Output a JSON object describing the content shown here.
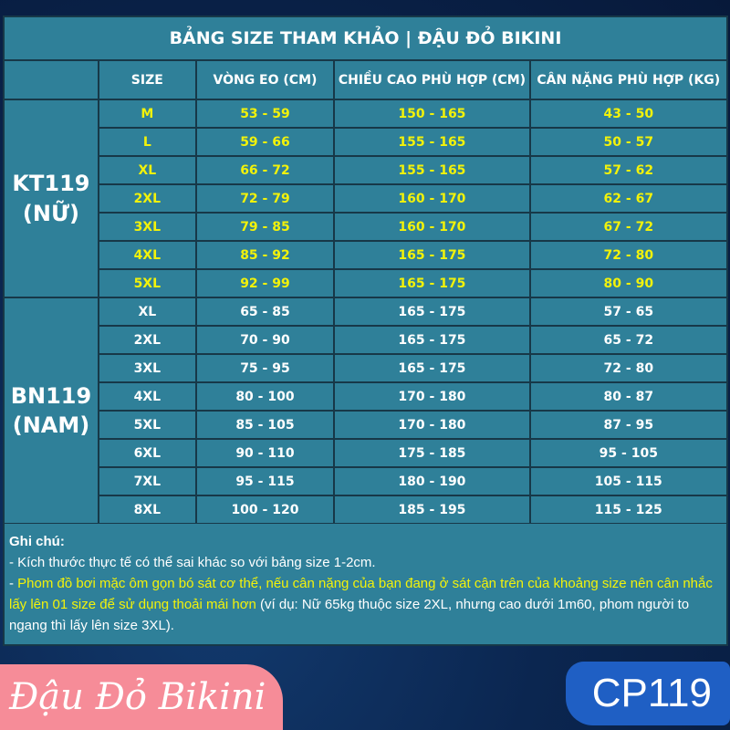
{
  "title": "BẢNG SIZE THAM KHẢO | ĐẬU ĐỎ BIKINI",
  "headers": [
    "SIZE",
    "VÒNG EO (CM)",
    "CHIỀU CAO PHÙ HỢP (CM)",
    "CÂN NẶNG PHÙ HỢP (KG)"
  ],
  "groups": [
    {
      "label": "KT119\n(NỮ)",
      "highlight": true,
      "rows": [
        [
          "M",
          "53 - 59",
          "150 - 165",
          "43 - 50"
        ],
        [
          "L",
          "59 - 66",
          "155 - 165",
          "50 - 57"
        ],
        [
          "XL",
          "66 - 72",
          "155 - 165",
          "57 - 62"
        ],
        [
          "2XL",
          "72 - 79",
          "160 - 170",
          "62 - 67"
        ],
        [
          "3XL",
          "79 - 85",
          "160 - 170",
          "67 - 72"
        ],
        [
          "4XL",
          "85 - 92",
          "165 - 175",
          "72 - 80"
        ],
        [
          "5XL",
          "92 - 99",
          "165 - 175",
          "80 - 90"
        ]
      ]
    },
    {
      "label": "BN119\n(NAM)",
      "highlight": false,
      "rows": [
        [
          "XL",
          "65 - 85",
          "165 - 175",
          "57 - 65"
        ],
        [
          "2XL",
          "70 - 90",
          "165 - 175",
          "65 - 72"
        ],
        [
          "3XL",
          "75 - 95",
          "165 - 175",
          "72 - 80"
        ],
        [
          "4XL",
          "80 - 100",
          "170 - 180",
          "80 - 87"
        ],
        [
          "5XL",
          "85 - 105",
          "170 - 180",
          "87 - 95"
        ],
        [
          "6XL",
          "90 - 110",
          "175 - 185",
          "95 - 105"
        ],
        [
          "7XL",
          "95 - 115",
          "180 - 190",
          "105 - 115"
        ],
        [
          "8XL",
          "100 - 120",
          "185 - 195",
          "115 - 125"
        ]
      ]
    }
  ],
  "notes": {
    "heading": "Ghi chú:",
    "line1": "- Kích thước thực tế có thể sai khác so với bảng size 1-2cm.",
    "line2_prefix": "- ",
    "line2_highlight": "Phom đồ bơi mặc ôm gọn bó sát cơ thể, nếu cân nặng của bạn đang ở sát cận trên của khoảng size nên cân nhắc lấy lên 01 size để sử dụng thoải mái hơn",
    "line2_rest": " (ví dụ: Nữ 65kg thuộc size 2XL, nhưng cao dưới 1m60, phom người to ngang thì lấy lên size 3XL)."
  },
  "brand": "Đậu Đỏ Bikini",
  "product_code": "CP119",
  "colors": {
    "table": "#2f8099",
    "highlight": "#f2f20a",
    "brand_bg": "#f68c98",
    "code_bg": "#1f5fc4"
  }
}
